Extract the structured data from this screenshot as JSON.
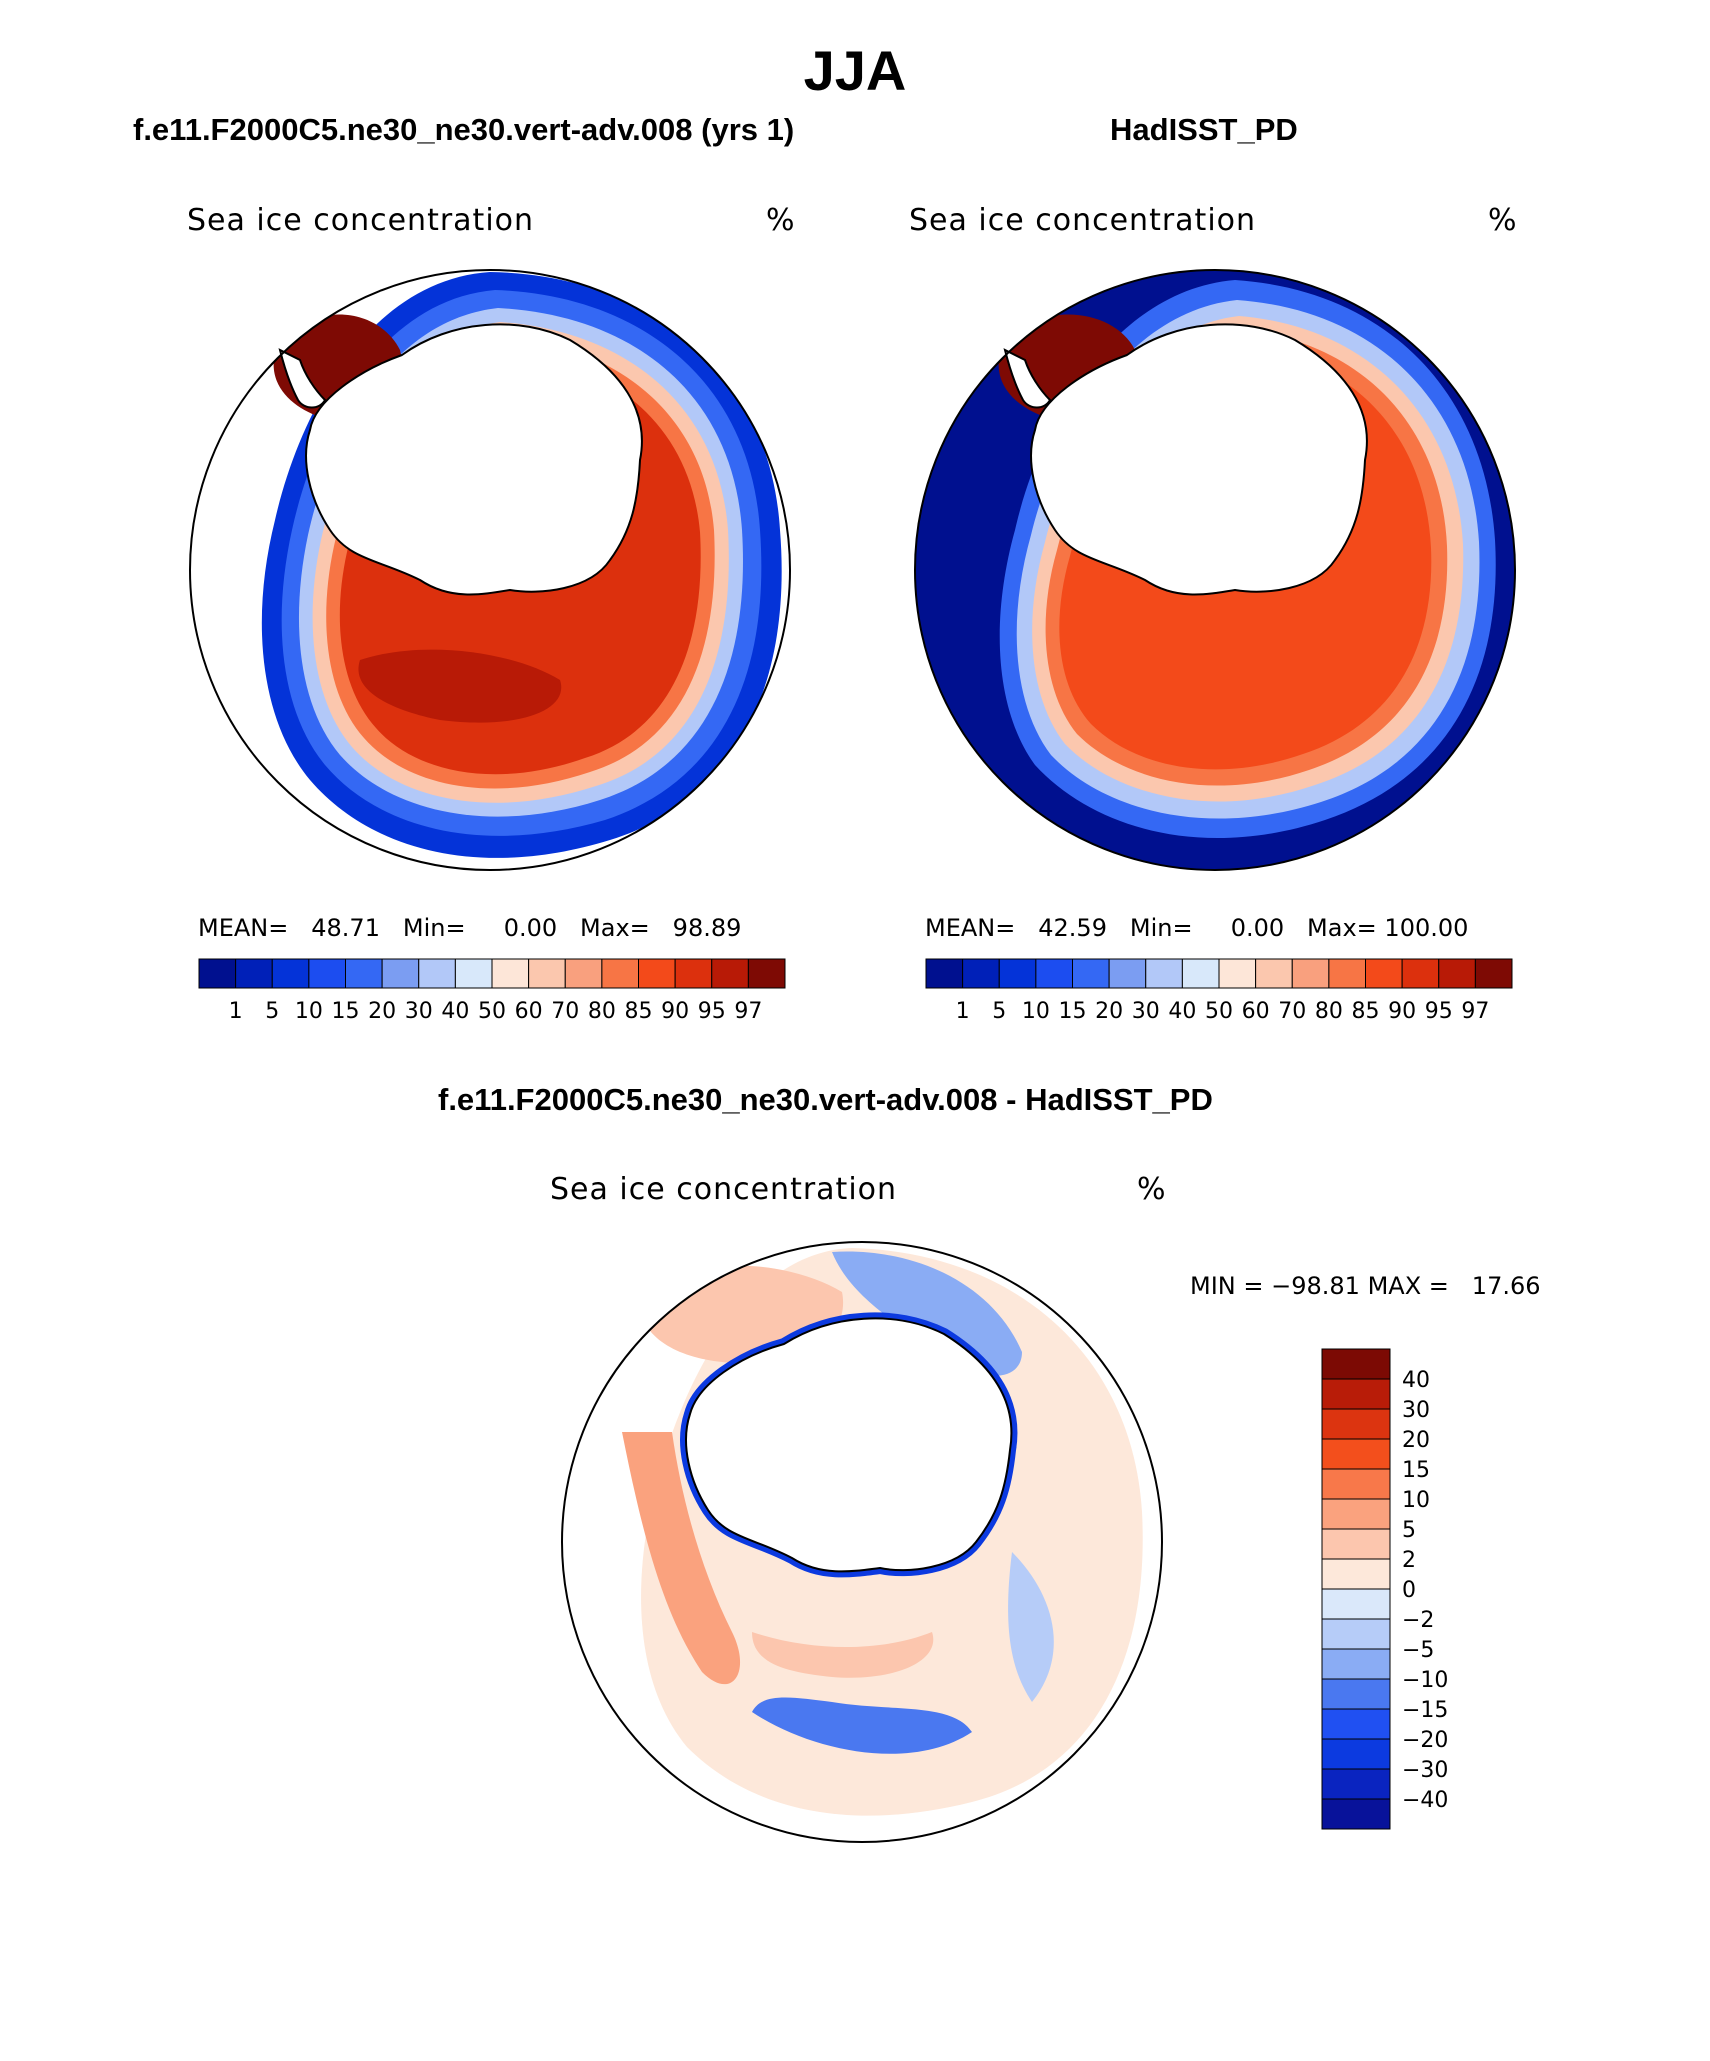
{
  "figure": {
    "title": "JJA"
  },
  "colors": {
    "seq_palette": [
      "#00108f",
      "#0020b8",
      "#0433d8",
      "#1c4df0",
      "#3468f4",
      "#7b9df2",
      "#b2c8f8",
      "#d8e8fa",
      "#fde6d8",
      "#fbc7ae",
      "#f9a07e",
      "#f77545",
      "#f34a1a",
      "#dc300d",
      "#b81a06",
      "#7e0a04"
    ],
    "diff_palette": [
      "#08129a",
      "#0a24c0",
      "#0c3ae0",
      "#2050f2",
      "#4a78f0",
      "#8aacf4",
      "#b6ccf8",
      "#dae8fa",
      "#fde8da",
      "#fcc6ae",
      "#faa27e",
      "#f8784a",
      "#f34f1c",
      "#dc3410",
      "#b81c08",
      "#7c0a04"
    ],
    "land": "#ffffff",
    "coast": "#000000"
  },
  "panels": [
    {
      "title": "f.e11.F2000C5.ne30_ne30.vert-adv.008 (yrs 1)",
      "subtitle": "Sea ice concentration",
      "units": "%",
      "mean_label": "MEAN=",
      "mean": "48.71",
      "min_label": "Min=",
      "min": "0.00",
      "max_label": "Max=",
      "max": "98.89",
      "colorbar_labels": [
        "1",
        "5",
        "10",
        "15",
        "20",
        "30",
        "40",
        "50",
        "60",
        "70",
        "80",
        "85",
        "90",
        "95",
        "97"
      ]
    },
    {
      "title": "HadISST_PD",
      "subtitle": "Sea ice concentration",
      "units": "%",
      "mean_label": "MEAN=",
      "mean": "42.59",
      "min_label": "Min=",
      "min": "0.00",
      "max_label": "Max=",
      "max": "100.00",
      "colorbar_labels": [
        "1",
        "5",
        "10",
        "15",
        "20",
        "30",
        "40",
        "50",
        "60",
        "70",
        "80",
        "85",
        "90",
        "95",
        "97"
      ]
    }
  ],
  "difference": {
    "title": "f.e11.F2000C5.ne30_ne30.vert-adv.008 - HadISST_PD",
    "subtitle": "Sea ice concentration",
    "units": "%",
    "min_label": "MIN =",
    "min": "−98.81",
    "max_label": "MAX =",
    "max": "17.66",
    "colorbar_labels": [
      "40",
      "30",
      "20",
      "15",
      "10",
      "5",
      "2",
      "0",
      "−2",
      "−5",
      "−10",
      "−15",
      "−20",
      "−30",
      "−40"
    ]
  }
}
